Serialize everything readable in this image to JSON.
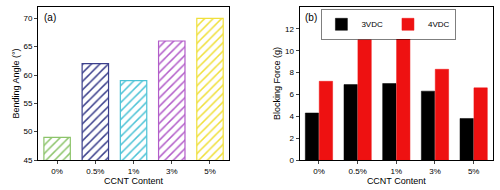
{
  "chart_data": [
    {
      "type": "bar",
      "annotations": [
        "(a)"
      ],
      "x_label": "CCNT Content",
      "y_label": "Bending Angle (°)",
      "categories": [
        "0%",
        "0.5%",
        "1%",
        "3%",
        "5%"
      ],
      "values": [
        49,
        62,
        59,
        66,
        70
      ],
      "colors": [
        "#8cc46a",
        "#3b3f8c",
        "#4cc3d6",
        "#b25cc9",
        "#f0e03c"
      ],
      "marker": "hatched",
      "ylim": [
        45,
        72
      ],
      "yticks": [
        45,
        50,
        55,
        60,
        65,
        70
      ],
      "grid": false
    },
    {
      "type": "bar",
      "annotations": [
        "(b)"
      ],
      "x_label": "CCNT Content",
      "y_label": "Blocking Force (g)",
      "categories": [
        "0%",
        "0.5%",
        "1%",
        "3%",
        "5%"
      ],
      "series": [
        {
          "name": "3VDC",
          "color": "#000000",
          "values": [
            4.3,
            6.9,
            7.0,
            6.3,
            3.8
          ]
        },
        {
          "name": "4VDC",
          "color": "#ee1111",
          "values": [
            7.2,
            11.0,
            11.8,
            8.3,
            6.6
          ]
        }
      ],
      "ylim": [
        0,
        14
      ],
      "yticks": [
        0,
        2,
        4,
        6,
        8,
        10,
        12
      ],
      "legend": "top left",
      "grid": false
    }
  ]
}
